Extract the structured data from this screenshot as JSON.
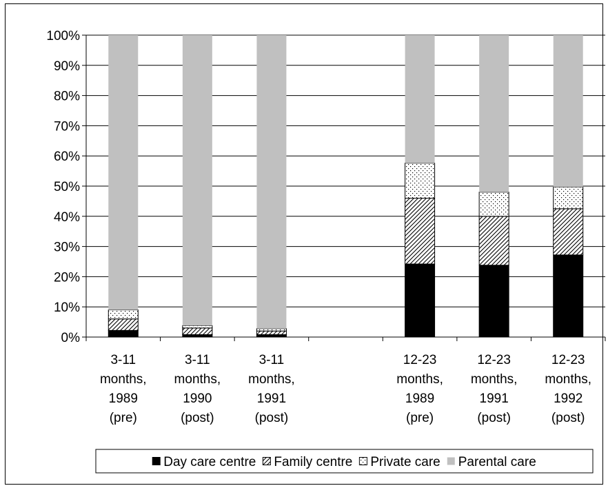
{
  "chart_data": {
    "type": "bar",
    "stacked": true,
    "y_format": "percent",
    "ylim": [
      0,
      100
    ],
    "y_ticks": [
      "0%",
      "10%",
      "20%",
      "30%",
      "40%",
      "50%",
      "60%",
      "70%",
      "80%",
      "90%",
      "100%"
    ],
    "grid": true,
    "legend_position": "bottom",
    "categories": [
      [
        "3-11",
        "months,",
        "1989",
        "(pre)"
      ],
      [
        "3-11",
        "months,",
        "1990",
        "(post)"
      ],
      [
        "3-11",
        "months,",
        "1991",
        "(post)"
      ],
      [
        "",
        "",
        "",
        ""
      ],
      [
        "12-23",
        "months,",
        "1989",
        "(pre)"
      ],
      [
        "12-23",
        "months,",
        "1991",
        "(post)"
      ],
      [
        "12-23",
        "months,",
        "1992",
        "(post)"
      ]
    ],
    "series": [
      {
        "name": "Day care centre",
        "pattern": "solid-black",
        "values": [
          2.2,
          0.8,
          0.8,
          0,
          24.2,
          23.8,
          27.2
        ]
      },
      {
        "name": "Family centre",
        "pattern": "hatch",
        "values": [
          3.8,
          2.2,
          1.2,
          0,
          21.8,
          16.2,
          15.3
        ]
      },
      {
        "name": "Private care",
        "pattern": "dots",
        "values": [
          3.0,
          0.8,
          0.8,
          0,
          11.6,
          8.0,
          7.2
        ]
      },
      {
        "name": "Parental care",
        "pattern": "solid-gray",
        "values": [
          91.0,
          96.2,
          97.2,
          0,
          42.4,
          52.0,
          50.3
        ]
      }
    ]
  }
}
